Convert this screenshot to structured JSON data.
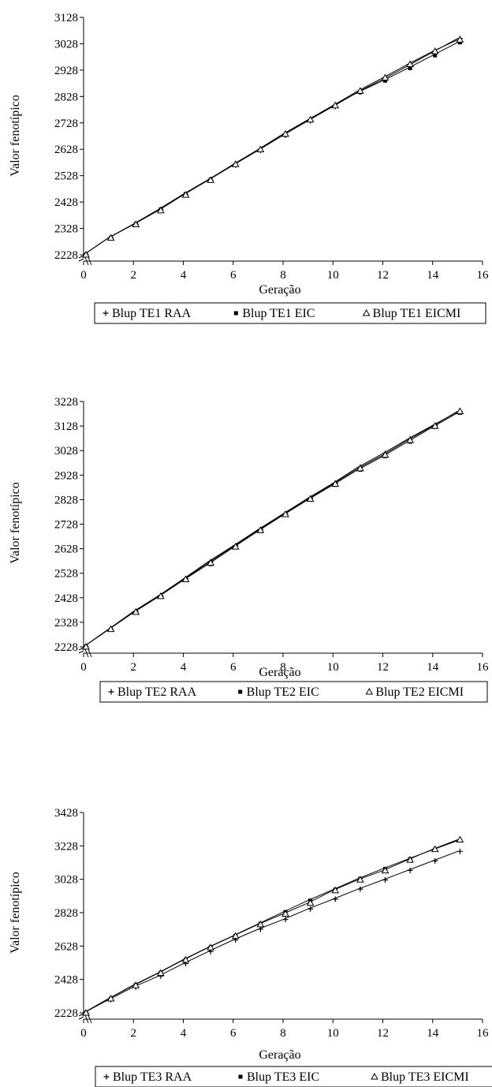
{
  "colors": {
    "series": "#000000",
    "background": "#ffffff"
  },
  "chart_data": [
    {
      "type": "line",
      "xlabel": "Geração",
      "ylabel": "Valor fenotípico",
      "xlim": [
        0,
        16
      ],
      "ylim": [
        2228,
        3128
      ],
      "xticks": [
        0,
        2,
        4,
        6,
        8,
        10,
        12,
        14,
        16
      ],
      "yticks": [
        2228,
        2328,
        2428,
        2528,
        2628,
        2728,
        2828,
        2928,
        3028,
        3128
      ],
      "y_axis_break": true,
      "grid": false,
      "legend_position": "bottom",
      "x": [
        0,
        1,
        2,
        3,
        4,
        5,
        6,
        7,
        8,
        9,
        10,
        11,
        12,
        13,
        14,
        15
      ],
      "series": [
        {
          "name": "Blup TE1 RAA",
          "marker": "plus",
          "values": [
            2228,
            2292,
            2344,
            2399,
            2456,
            2511,
            2568,
            2624,
            2681,
            2736,
            2790,
            2845,
            2893,
            2944,
            2996,
            3048
          ]
        },
        {
          "name": "Blup TE1 EIC",
          "marker": "square",
          "values": [
            2228,
            2292,
            2345,
            2400,
            2458,
            2513,
            2570,
            2625,
            2682,
            2738,
            2792,
            2844,
            2888,
            2935,
            2984,
            3033
          ]
        },
        {
          "name": "Blup TE1 EICMI",
          "marker": "triangle",
          "values": [
            2228,
            2292,
            2343,
            2396,
            2455,
            2511,
            2571,
            2627,
            2686,
            2740,
            2794,
            2849,
            2899,
            2950,
            2999,
            3043
          ]
        }
      ]
    },
    {
      "type": "line",
      "xlabel": "Geração",
      "ylabel": "Valor fenotípico",
      "xlim": [
        0,
        16
      ],
      "ylim": [
        2228,
        3228
      ],
      "xticks": [
        0,
        2,
        4,
        6,
        8,
        10,
        12,
        14,
        16
      ],
      "xtick_labels": [
        "0",
        "2",
        "4",
        "6",
        "8",
        "10",
        "12",
        "14",
        "16"
      ],
      "yticks": [
        2228,
        2328,
        2428,
        2528,
        2628,
        2728,
        2828,
        2928,
        3028,
        3128,
        3228
      ],
      "y_axis_break": true,
      "grid": false,
      "legend_position": "bottom",
      "x": [
        0,
        1,
        2,
        3,
        4,
        5,
        6,
        7,
        8,
        9,
        10,
        11,
        12,
        13,
        14,
        15
      ],
      "series": [
        {
          "name": "Blup TE2 RAA",
          "marker": "plus",
          "values": [
            2228,
            2300,
            2372,
            2436,
            2505,
            2575,
            2640,
            2706,
            2770,
            2834,
            2895,
            2960,
            3016,
            3075,
            3131,
            3186
          ]
        },
        {
          "name": "Blup TE2 EIC",
          "marker": "square",
          "values": [
            2228,
            2298,
            2368,
            2432,
            2500,
            2565,
            2633,
            2700,
            2765,
            2828,
            2888,
            2950,
            3005,
            3064,
            3124,
            3182
          ]
        },
        {
          "name": "Blup TE2 EICMI",
          "marker": "triangle",
          "values": [
            2228,
            2300,
            2370,
            2434,
            2503,
            2570,
            2636,
            2703,
            2768,
            2831,
            2892,
            2955,
            3010,
            3070,
            3128,
            3188
          ]
        }
      ]
    },
    {
      "type": "line",
      "xlabel": "Geração",
      "ylabel": "Valor fenotípico",
      "xlim": [
        0,
        16
      ],
      "ylim": [
        2228,
        3428
      ],
      "xticks": [
        0,
        2,
        4,
        6,
        8,
        10,
        12,
        14,
        16
      ],
      "yticks": [
        2228,
        2428,
        2628,
        2828,
        3028,
        3228,
        3428
      ],
      "y_axis_break": true,
      "grid": false,
      "legend_position": "bottom",
      "x": [
        0,
        1,
        2,
        3,
        4,
        5,
        6,
        7,
        8,
        9,
        10,
        11,
        12,
        13,
        14,
        15
      ],
      "series": [
        {
          "name": "Blup TE3 RAA",
          "marker": "plus",
          "values": [
            2228,
            2307,
            2383,
            2448,
            2523,
            2595,
            2665,
            2729,
            2787,
            2850,
            2909,
            2969,
            3024,
            3081,
            3138,
            3195
          ]
        },
        {
          "name": "Blup TE3 EIC",
          "marker": "square",
          "values": [
            2228,
            2313,
            2395,
            2468,
            2547,
            2621,
            2690,
            2761,
            2832,
            2901,
            2966,
            3031,
            3091,
            3149,
            3205,
            3260
          ]
        },
        {
          "name": "Blup TE3 EICMI",
          "marker": "triangle",
          "values": [
            2228,
            2313,
            2392,
            2466,
            2545,
            2619,
            2688,
            2758,
            2821,
            2886,
            2961,
            3025,
            3080,
            3144,
            3208,
            3265
          ]
        }
      ]
    }
  ]
}
